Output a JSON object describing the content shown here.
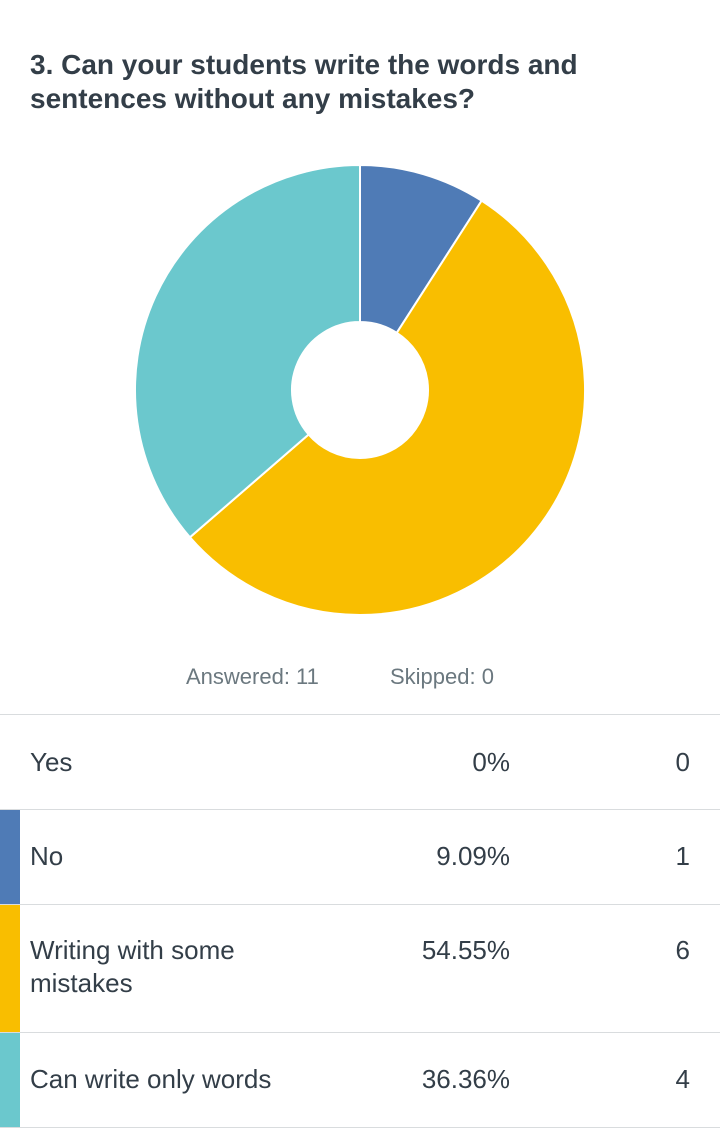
{
  "question": {
    "title": "3. Can your students write the words and sentences without any mistakes?"
  },
  "summary": {
    "answered": "Answered: 11",
    "skipped": "Skipped: 0"
  },
  "rows": [
    {
      "label": "Yes",
      "percent": "0%",
      "count": "0",
      "color": ""
    },
    {
      "label": "No",
      "percent": "9.09%",
      "count": "1",
      "color": "#4f7bb6"
    },
    {
      "label": "Writing with some mistakes",
      "percent": "54.55%",
      "count": "6",
      "color": "#f9be00"
    },
    {
      "label": "Can write only words",
      "percent": "36.36%",
      "count": "4",
      "color": "#6bc8cd"
    }
  ],
  "chart_data": {
    "type": "pie",
    "donut": true,
    "categories": [
      "Yes",
      "No",
      "Writing with some mistakes",
      "Can write only words"
    ],
    "values": [
      0,
      9.09,
      54.55,
      36.36
    ],
    "counts": [
      0,
      1,
      6,
      4
    ],
    "colors": [
      "#cccccc",
      "#4f7bb6",
      "#f9be00",
      "#6bc8cd"
    ],
    "start": "12 o'clock",
    "direction": "clockwise",
    "legend": "none"
  }
}
